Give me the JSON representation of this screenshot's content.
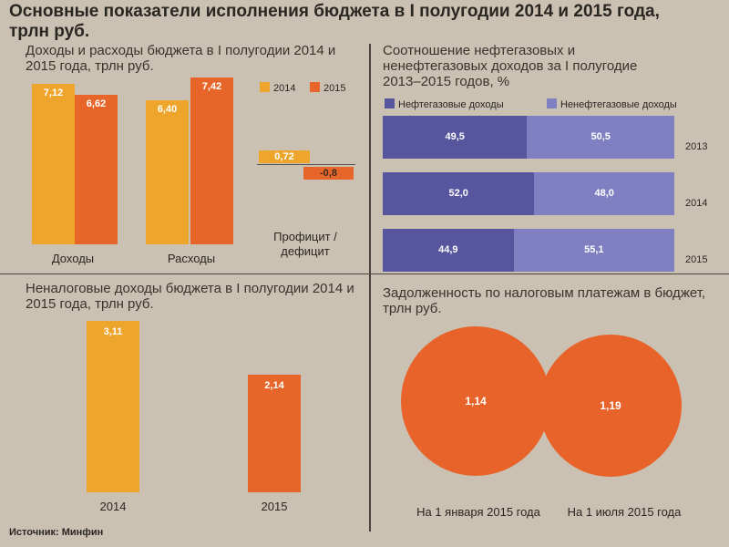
{
  "title": "Основные показатели исполнения бюджета в I полугодии 2014 и 2015 года, трлн руб.",
  "source": "Источник: Минфин",
  "colors": {
    "y2014": "#eea52c",
    "y2015": "#e8652a",
    "oil": "#58559f",
    "nonoil": "#7f7fc2"
  },
  "chart_data": [
    {
      "type": "bar",
      "title": "Доходы и расходы бюджета в I полугодии 2014 и 2015 года, трлн руб.",
      "categories": [
        "Доходы",
        "Расходы",
        "Профицит / дефицит"
      ],
      "series": [
        {
          "name": "2014",
          "values": [
            7.12,
            6.4,
            0.72
          ],
          "labels": [
            "7,12",
            "6,40",
            "0,72"
          ]
        },
        {
          "name": "2015",
          "values": [
            6.62,
            7.42,
            -0.8
          ],
          "labels": [
            "6,62",
            "7,42",
            "-0,8"
          ]
        }
      ]
    },
    {
      "type": "bar",
      "title": "Соотношение нефтегазовых и ненефтегазовых доходов за I полугодие 2013–2015 годов, %",
      "categories": [
        "2013",
        "2014",
        "2015"
      ],
      "series": [
        {
          "name": "Нефтегазовые доходы",
          "values": [
            49.5,
            52.0,
            44.9
          ],
          "labels": [
            "49,5",
            "52,0",
            "44,9"
          ]
        },
        {
          "name": "Ненефтегазовые доходы",
          "values": [
            50.5,
            48.0,
            55.1
          ],
          "labels": [
            "50,5",
            "48,0",
            "55,1"
          ]
        }
      ]
    },
    {
      "type": "bar",
      "title": "Неналоговые доходы бюджета в I полугодии 2014 и 2015 года, трлн руб.",
      "categories": [
        "2014",
        "2015"
      ],
      "values": [
        3.11,
        2.14
      ],
      "labels": [
        "3,11",
        "2,14"
      ]
    },
    {
      "type": "pie",
      "title": "Задолженность по налоговым платежам в бюджет, трлн руб.",
      "categories": [
        "На 1 января 2015 года",
        "На 1 июля 2015 года"
      ],
      "values": [
        1.14,
        1.19
      ],
      "labels": [
        "1,14",
        "1,19"
      ]
    }
  ]
}
